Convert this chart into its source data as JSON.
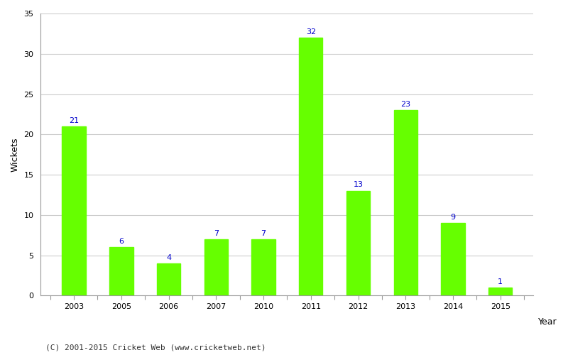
{
  "years": [
    "2003",
    "2005",
    "2006",
    "2007",
    "2010",
    "2011",
    "2012",
    "2013",
    "2014",
    "2015"
  ],
  "values": [
    21,
    6,
    4,
    7,
    7,
    32,
    13,
    23,
    9,
    1
  ],
  "bar_color": "#66ff00",
  "bar_edgecolor": "#66ff00",
  "label_color": "#0000cc",
  "label_fontsize": 8,
  "xlabel": "Year",
  "ylabel": "Wickets",
  "ylim": [
    0,
    35
  ],
  "yticks": [
    0,
    5,
    10,
    15,
    20,
    25,
    30,
    35
  ],
  "grid_color": "#cccccc",
  "background_color": "#ffffff",
  "footnote": "(C) 2001-2015 Cricket Web (www.cricketweb.net)",
  "footnote_fontsize": 8,
  "footnote_color": "#333333",
  "axis_label_fontsize": 9,
  "tick_fontsize": 8,
  "bar_width": 0.5
}
